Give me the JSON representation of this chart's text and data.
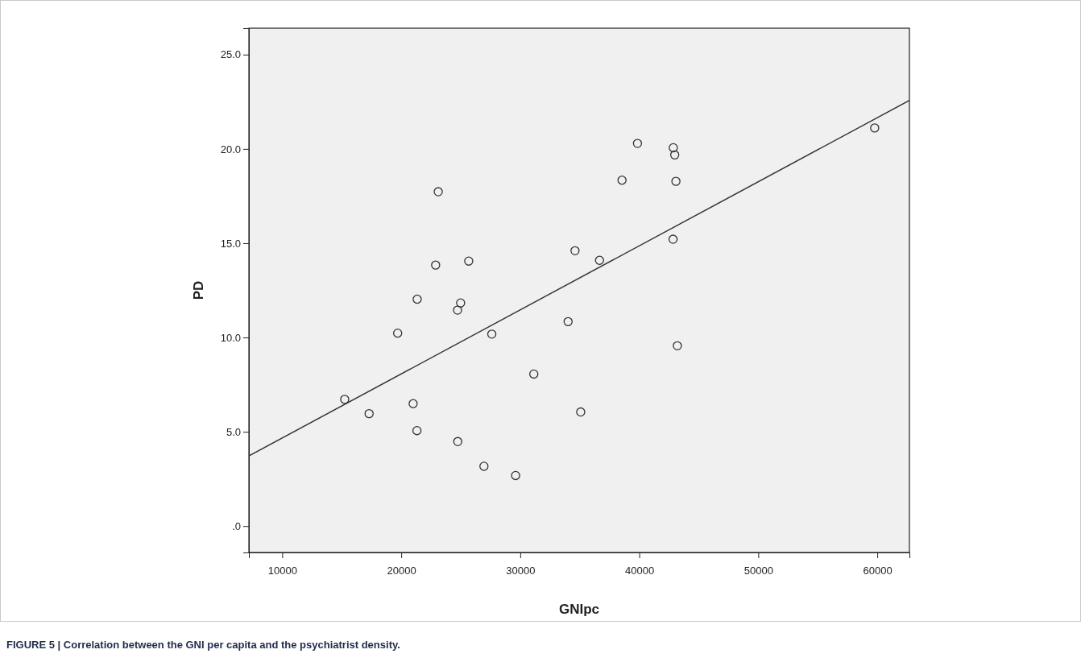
{
  "chart_data": {
    "type": "scatter",
    "xlabel": "GNIpc",
    "ylabel": "PD",
    "annotations": [
      "FIGURE 5 | Correlation between the GNI per capita and the psychiatrist density."
    ],
    "xlim": [
      7200,
      62700
    ],
    "ylim": [
      -1.4,
      26.4
    ],
    "xticks": [
      10000,
      20000,
      30000,
      40000,
      50000,
      60000
    ],
    "yticks": [
      {
        "value": 0,
        "label": ".0"
      },
      {
        "value": 5,
        "label": "5.0"
      },
      {
        "value": 10,
        "label": "10.0"
      },
      {
        "value": 15,
        "label": "15.0"
      },
      {
        "value": 20,
        "label": "20.0"
      },
      {
        "value": 25,
        "label": "25.0"
      }
    ],
    "grid": false,
    "series": [
      {
        "marker": "circle",
        "color": "#333333",
        "x": [
          15250,
          17300,
          19700,
          21000,
          21340,
          21320,
          22890,
          23110,
          24730,
          24990,
          24750,
          25670,
          26950,
          27610,
          29610,
          31140,
          34020,
          34600,
          35080,
          36660,
          38550,
          39850,
          42860,
          42980,
          43080,
          42840,
          43200,
          59780
        ],
        "values": [
          6.72,
          5.96,
          10.23,
          6.49,
          12.03,
          5.06,
          13.84,
          17.73,
          11.45,
          11.83,
          4.48,
          14.05,
          3.17,
          10.18,
          2.68,
          8.06,
          10.84,
          14.6,
          6.05,
          14.09,
          18.34,
          20.29,
          20.06,
          19.68,
          18.28,
          15.21,
          9.56,
          21.11
        ]
      },
      {
        "type": "line",
        "marker": "none",
        "color": "#333333",
        "x": [
          7200,
          62700
        ],
        "values": [
          3.72,
          22.57
        ]
      }
    ]
  }
}
